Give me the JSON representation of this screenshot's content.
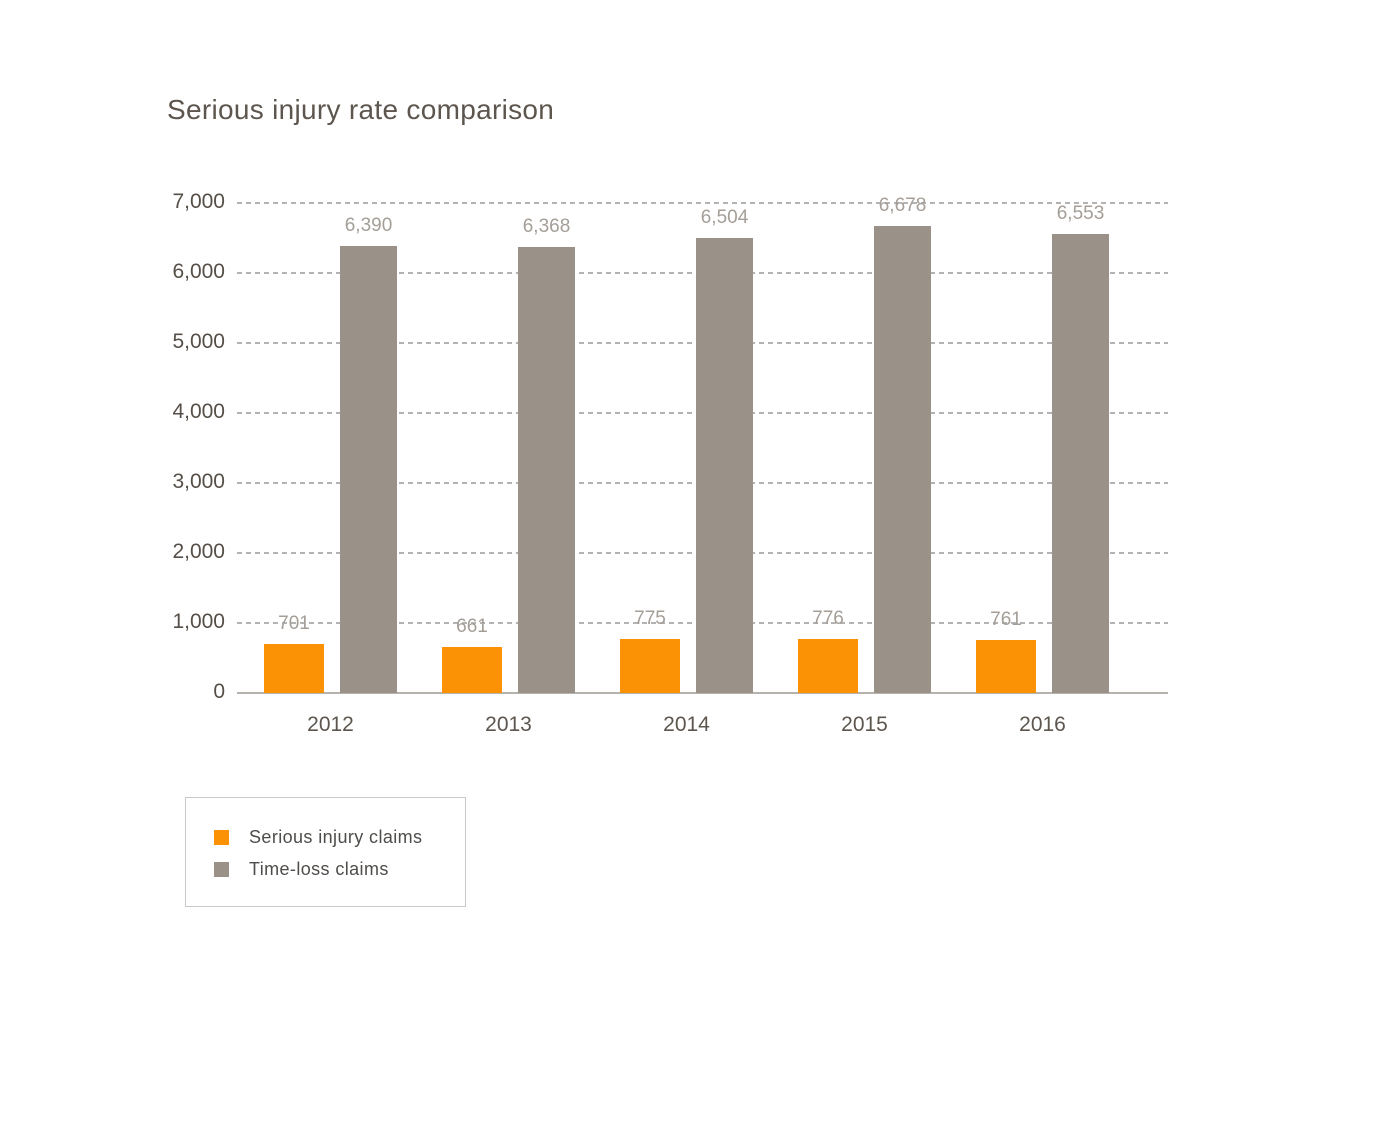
{
  "title": "Serious injury rate comparison",
  "chart_data": {
    "type": "bar",
    "title": "Serious injury rate comparison",
    "categories": [
      "2012",
      "2013",
      "2014",
      "2015",
      "2016"
    ],
    "series": [
      {
        "name": "Serious injury claims",
        "color": "#fb9104",
        "values": [
          701,
          661,
          775,
          776,
          761
        ],
        "labels": [
          "701",
          "661",
          "775",
          "776",
          "761"
        ]
      },
      {
        "name": "Time-loss claims",
        "color": "#9a9189",
        "values": [
          6390,
          6368,
          6504,
          6678,
          6553
        ],
        "labels": [
          "6,390",
          "6,368",
          "6,504",
          "6,678",
          "6,553"
        ]
      }
    ],
    "ylim": [
      0,
      7000
    ],
    "ytick_step": 1000,
    "yticks": [
      "0",
      "1,000",
      "2,000",
      "3,000",
      "4,000",
      "5,000",
      "6,000",
      "7,000"
    ],
    "grid": "horizontal-dashed",
    "legend_position": "bottom-left",
    "colors": {
      "title_text": "#5d564e",
      "axis_text": "#564f48",
      "data_label_text": "#a49e97",
      "gridline": "#b3b3b3",
      "baseline": "#b6b2ad",
      "legend_border": "#c9c9c9",
      "legend_text": "#4f4d4a"
    }
  }
}
